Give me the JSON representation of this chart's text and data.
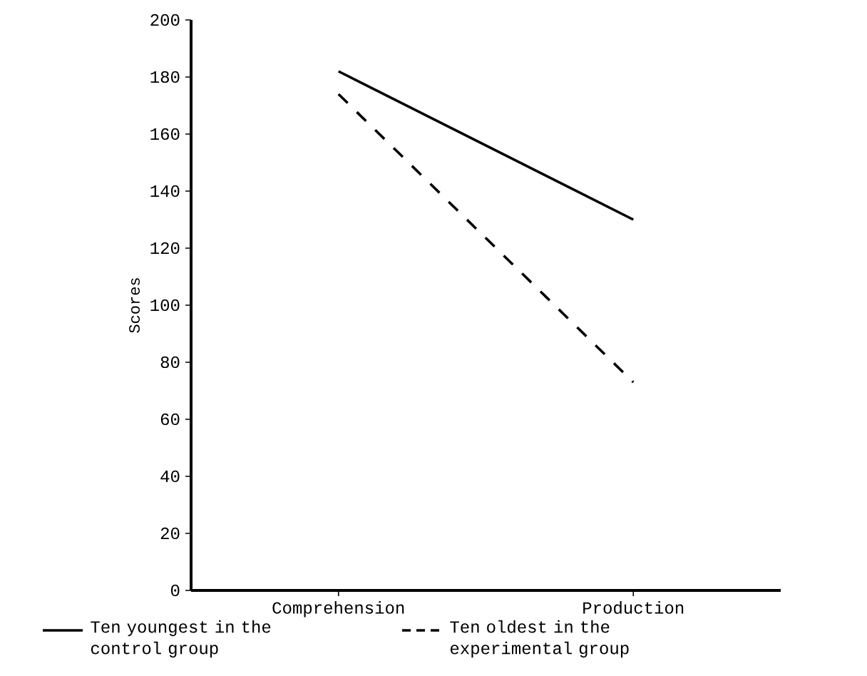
{
  "chart_data": {
    "type": "line",
    "ylabel": "Scores",
    "categories": [
      "Comprehension",
      "Production"
    ],
    "series": [
      {
        "name": "Ten youngest in the control group",
        "color": "#000000",
        "line_style": "solid",
        "values": [
          182,
          130
        ]
      },
      {
        "name": "Ten oldest in the experimental group",
        "color": "#000000",
        "line_style": "dashed",
        "values": [
          174,
          73
        ]
      }
    ],
    "ylim": [
      0,
      200
    ],
    "yticks": [
      0,
      20,
      40,
      60,
      80,
      100,
      120,
      140,
      160,
      180,
      200
    ],
    "grid": false,
    "legend": "bottom",
    "marker": "none"
  }
}
